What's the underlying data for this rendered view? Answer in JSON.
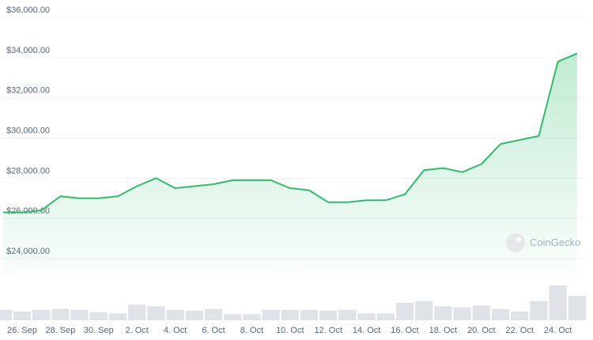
{
  "chart_data": {
    "type": "line",
    "watermark": "CoinGecko",
    "categories": [
      null,
      "26. Sep",
      null,
      "28. Sep",
      null,
      "30. Sep",
      null,
      "2. Oct",
      null,
      "4. Oct",
      null,
      "6. Oct",
      null,
      "8. Oct",
      null,
      "10. Oct",
      null,
      "12. Oct",
      null,
      "14. Oct",
      null,
      "16. Oct",
      null,
      "18. Oct",
      null,
      "20. Oct",
      null,
      "22. Oct",
      null,
      "24. Oct",
      null
    ],
    "series": [
      {
        "color": "#2ebd6b",
        "values": [
          26300,
          26300,
          26400,
          27100,
          27000,
          27000,
          27100,
          27600,
          28000,
          27500,
          27600,
          27700,
          27900,
          27900,
          27900,
          27500,
          27400,
          26800,
          26800,
          26900,
          26900,
          27200,
          28400,
          28500,
          28300,
          28700,
          29700,
          29900,
          30100,
          33800,
          34200
        ]
      },
      {
        "type": "bar",
        "axis": "y2",
        "color": "#dfe3e8",
        "values": [
          12,
          10,
          12,
          13,
          12,
          9,
          8,
          18,
          16,
          12,
          11,
          13,
          7,
          7,
          12,
          12,
          12,
          11,
          12,
          8,
          8,
          20,
          22,
          16,
          15,
          17,
          13,
          10,
          22,
          40,
          28
        ]
      }
    ],
    "ylim": [
      23500,
      36000
    ],
    "yticks": [
      {
        "value": 24000,
        "label": "$24,000.00"
      },
      {
        "value": 26000,
        "label": "$26,000.00"
      },
      {
        "value": 28000,
        "label": "$28,000.00"
      },
      {
        "value": 30000,
        "label": "$30,000.00"
      },
      {
        "value": 32000,
        "label": "$32,000.00"
      },
      {
        "value": 34000,
        "label": "$34,000.00"
      },
      {
        "value": 36000,
        "label": "$36,000.00"
      }
    ],
    "y2lim": [
      0,
      50
    ],
    "grid": true
  }
}
